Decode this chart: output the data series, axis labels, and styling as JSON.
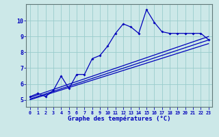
{
  "xlabel": "Graphe des températures (°C)",
  "bg_color": "#cce8e8",
  "line_color": "#0000bb",
  "grid_color": "#99cccc",
  "x_ticks": [
    0,
    1,
    2,
    3,
    4,
    5,
    6,
    7,
    8,
    9,
    10,
    11,
    12,
    13,
    14,
    15,
    16,
    17,
    18,
    19,
    20,
    21,
    22,
    23
  ],
  "y_ticks": [
    5,
    6,
    7,
    8,
    9,
    10
  ],
  "ylim": [
    4.55,
    11.05
  ],
  "xlim": [
    -0.5,
    23.5
  ],
  "series1_x": [
    0,
    1,
    2,
    3,
    4,
    5,
    6,
    7,
    8,
    9,
    10,
    11,
    12,
    13,
    14,
    15,
    16,
    17,
    18,
    19,
    20,
    21,
    22,
    23
  ],
  "series1_y": [
    5.2,
    5.4,
    5.2,
    5.6,
    6.5,
    5.7,
    6.6,
    6.6,
    7.6,
    7.8,
    8.4,
    9.2,
    9.8,
    9.6,
    9.2,
    10.7,
    9.9,
    9.3,
    9.2,
    9.2,
    9.2,
    9.2,
    9.2,
    8.8
  ],
  "line2_x": [
    0,
    23
  ],
  "line2_y": [
    5.15,
    9.0
  ],
  "line3_x": [
    0,
    23
  ],
  "line3_y": [
    5.0,
    8.55
  ],
  "line4_x": [
    0,
    23
  ],
  "line4_y": [
    5.05,
    8.78
  ]
}
